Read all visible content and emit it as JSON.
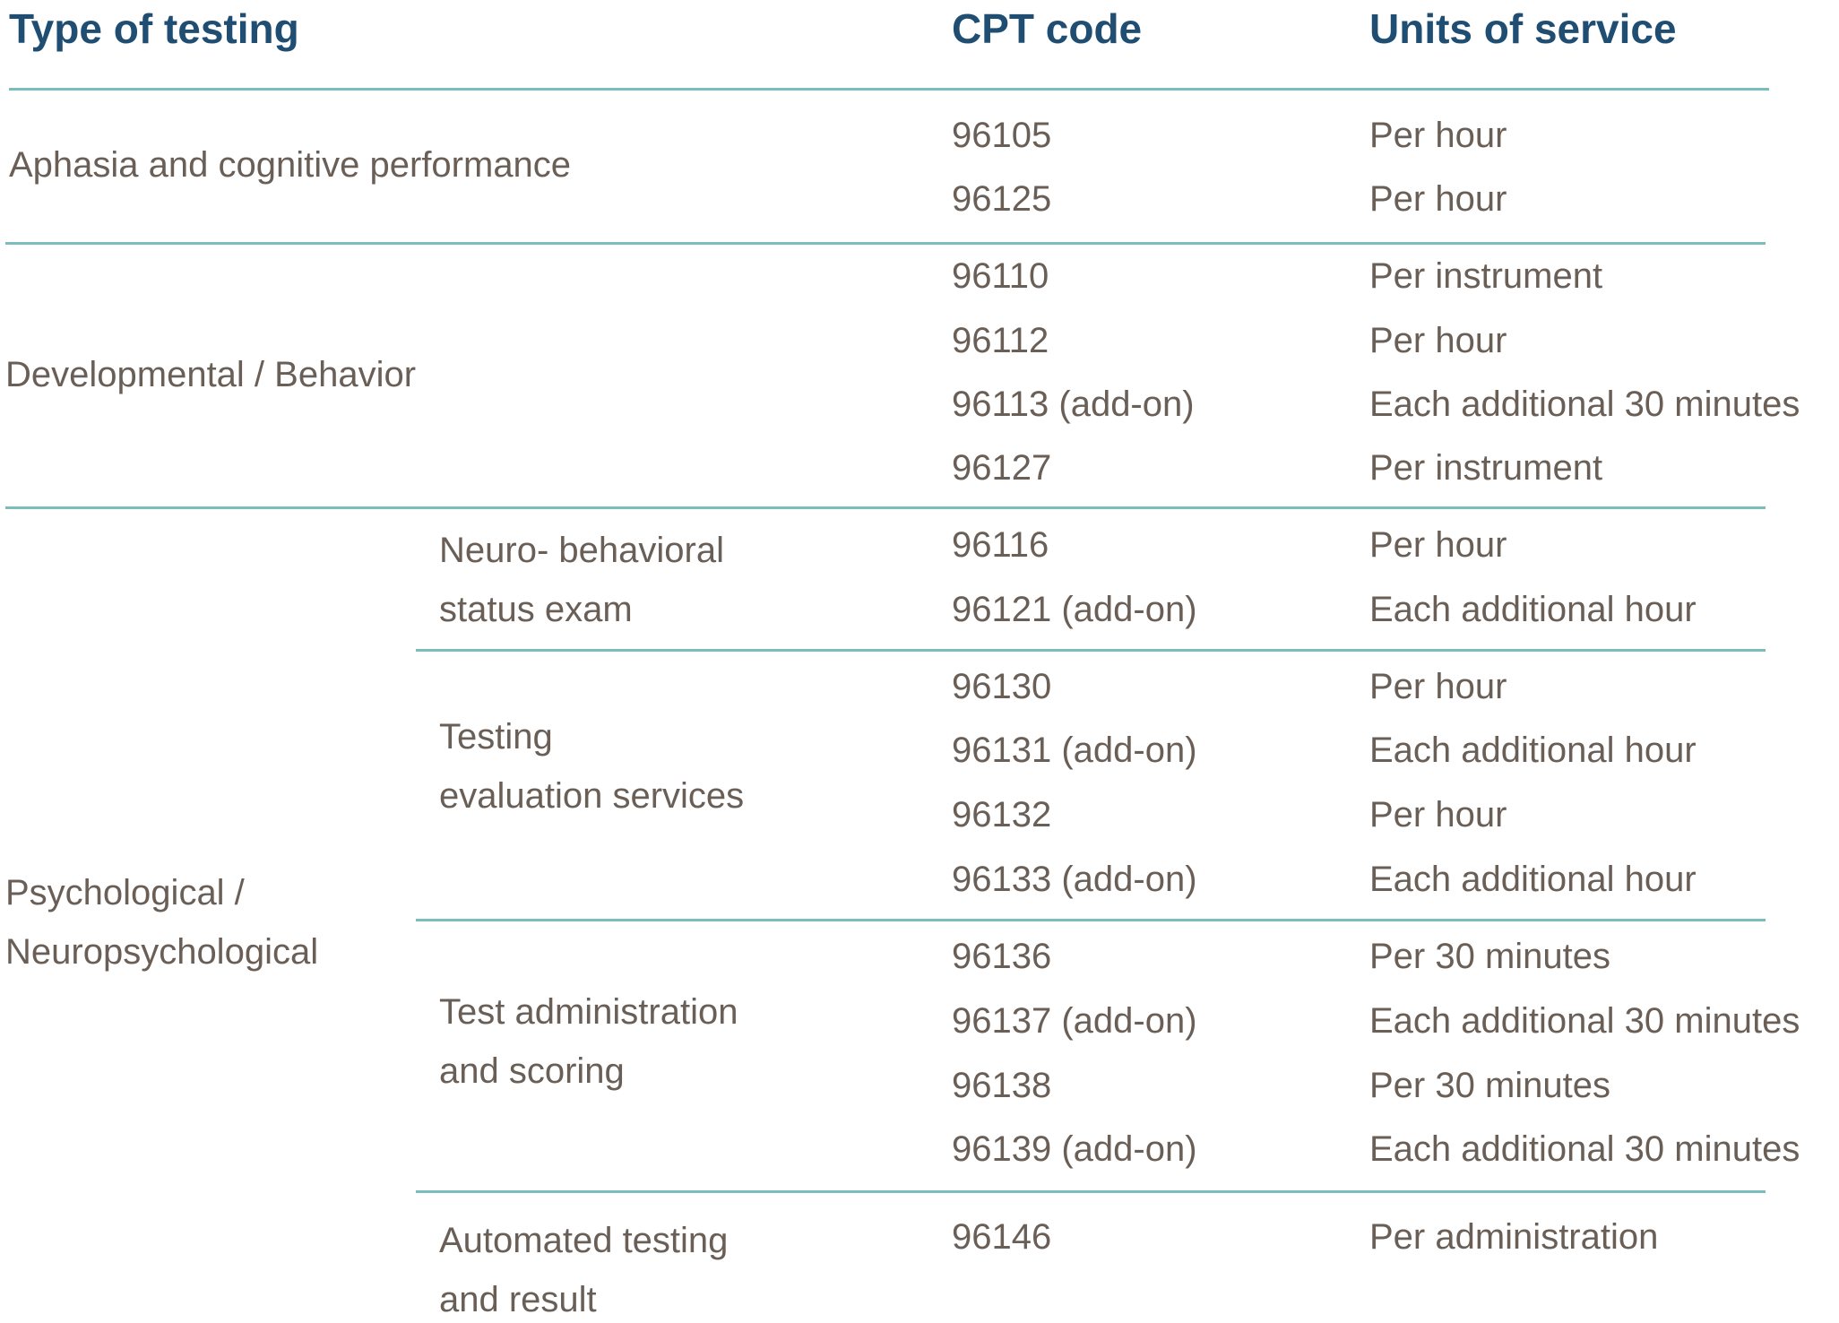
{
  "header": {
    "type_of_testing": "Type of testing",
    "cpt_code": "CPT code",
    "units_of_service": "Units of service"
  },
  "rows": [
    {
      "category": "Aphasia and cognitive performance",
      "entries": [
        {
          "code": "96105",
          "unit": "Per hour"
        },
        {
          "code": "96125",
          "unit": "Per hour"
        }
      ]
    },
    {
      "category": "Developmental / Behavior",
      "entries": [
        {
          "code": "96110",
          "unit": "Per instrument"
        },
        {
          "code": "96112",
          "unit": "Per hour"
        },
        {
          "code": "96113 (add-on)",
          "unit": "Each additional 30 minutes"
        },
        {
          "code": "96127",
          "unit": "Per instrument"
        }
      ]
    },
    {
      "category_lines": [
        "Psychological /",
        "Neuropsychological"
      ],
      "subgroups": [
        {
          "label_lines": [
            "Neuro- behavioral",
            "status exam"
          ],
          "entries": [
            {
              "code": "96116",
              "unit": "Per hour"
            },
            {
              "code": "96121 (add-on)",
              "unit": "Each additional hour"
            }
          ]
        },
        {
          "label_lines": [
            "Testing",
            "evaluation services"
          ],
          "entries": [
            {
              "code": "96130",
              "unit": "Per hour"
            },
            {
              "code": "96131 (add-on)",
              "unit": "Each additional hour"
            },
            {
              "code": "96132",
              "unit": "Per hour"
            },
            {
              "code": "96133 (add-on)",
              "unit": "Each additional hour"
            }
          ]
        },
        {
          "label_lines": [
            "Test administration",
            "and scoring"
          ],
          "entries": [
            {
              "code": "96136",
              "unit": "Per 30 minutes"
            },
            {
              "code": "96137 (add-on)",
              "unit": "Each additional 30 minutes"
            },
            {
              "code": "96138",
              "unit": "Per 30 minutes"
            },
            {
              "code": "96139 (add-on)",
              "unit": "Each additional 30 minutes"
            }
          ]
        },
        {
          "label_lines": [
            "Automated testing",
            "and result"
          ],
          "entries": [
            {
              "code": "96146",
              "unit": "Per administration"
            }
          ]
        }
      ]
    }
  ],
  "colors": {
    "header_text": "#1f4e72",
    "body_text": "#6a5f57",
    "rule": "#7bbcbd"
  }
}
